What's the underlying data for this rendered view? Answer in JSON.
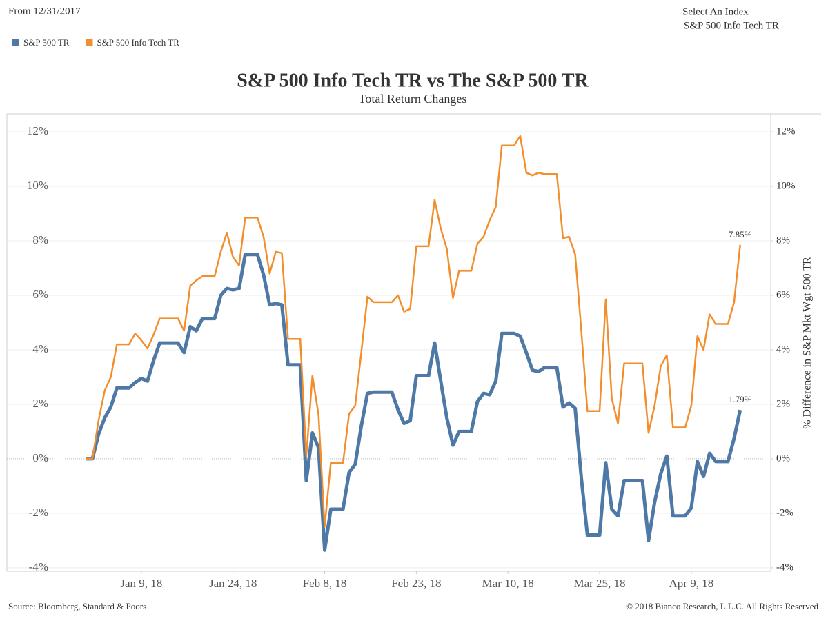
{
  "header": {
    "range_note": "From 12/31/2017",
    "selector_label": "Select An Index",
    "selector_value": "S&P 500 Info Tech TR"
  },
  "chart_data": {
    "type": "line",
    "title": "S&P 500 Info Tech TR vs The S&P 500 TR",
    "subtitle": "Total Return Changes",
    "y2_label": "% Difference in S&P Mkt Wgt 500 TR",
    "x": [
      "2017-12-31",
      "2018-01-01",
      "2018-01-02",
      "2018-01-03",
      "2018-01-04",
      "2018-01-05",
      "2018-01-06",
      "2018-01-07",
      "2018-01-08",
      "2018-01-09",
      "2018-01-10",
      "2018-01-11",
      "2018-01-12",
      "2018-01-13",
      "2018-01-14",
      "2018-01-15",
      "2018-01-16",
      "2018-01-17",
      "2018-01-18",
      "2018-01-19",
      "2018-01-20",
      "2018-01-21",
      "2018-01-22",
      "2018-01-23",
      "2018-01-24",
      "2018-01-25",
      "2018-01-26",
      "2018-01-27",
      "2018-01-28",
      "2018-01-29",
      "2018-01-30",
      "2018-01-31",
      "2018-02-01",
      "2018-02-02",
      "2018-02-03",
      "2018-02-04",
      "2018-02-05",
      "2018-02-06",
      "2018-02-07",
      "2018-02-08",
      "2018-02-09",
      "2018-02-10",
      "2018-02-11",
      "2018-02-12",
      "2018-02-13",
      "2018-02-14",
      "2018-02-15",
      "2018-02-16",
      "2018-02-17",
      "2018-02-18",
      "2018-02-19",
      "2018-02-20",
      "2018-02-21",
      "2018-02-22",
      "2018-02-23",
      "2018-02-24",
      "2018-02-25",
      "2018-02-26",
      "2018-02-27",
      "2018-02-28",
      "2018-03-01",
      "2018-03-02",
      "2018-03-03",
      "2018-03-04",
      "2018-03-05",
      "2018-03-06",
      "2018-03-07",
      "2018-03-08",
      "2018-03-09",
      "2018-03-10",
      "2018-03-11",
      "2018-03-12",
      "2018-03-13",
      "2018-03-14",
      "2018-03-15",
      "2018-03-16",
      "2018-03-17",
      "2018-03-18",
      "2018-03-19",
      "2018-03-20",
      "2018-03-21",
      "2018-03-22",
      "2018-03-23",
      "2018-03-24",
      "2018-03-25",
      "2018-03-26",
      "2018-03-27",
      "2018-03-28",
      "2018-03-29",
      "2018-03-30",
      "2018-03-31",
      "2018-04-01",
      "2018-04-02",
      "2018-04-03",
      "2018-04-04",
      "2018-04-05",
      "2018-04-06",
      "2018-04-07",
      "2018-04-08",
      "2018-04-09",
      "2018-04-10",
      "2018-04-11",
      "2018-04-12",
      "2018-04-13",
      "2018-04-14",
      "2018-04-15",
      "2018-04-16",
      "2018-04-17"
    ],
    "series": [
      {
        "name": "S&P 500 TR",
        "color": "#4e79a7",
        "width": 5,
        "end_label": "1.79%",
        "values": [
          0,
          0,
          0.9,
          1.5,
          1.9,
          2.6,
          2.6,
          2.6,
          2.8,
          2.95,
          2.85,
          3.6,
          4.25,
          4.25,
          4.25,
          4.25,
          3.9,
          4.85,
          4.7,
          5.15,
          5.15,
          5.15,
          6.0,
          6.25,
          6.2,
          6.25,
          7.5,
          7.5,
          7.5,
          6.75,
          5.65,
          5.7,
          5.65,
          3.45,
          3.45,
          3.45,
          -0.8,
          0.95,
          0.4,
          -3.35,
          -1.85,
          -1.85,
          -1.85,
          -0.5,
          -0.2,
          1.2,
          2.4,
          2.45,
          2.45,
          2.45,
          2.45,
          1.8,
          1.3,
          1.4,
          3.05,
          3.05,
          3.05,
          4.25,
          2.85,
          1.5,
          0.5,
          1.0,
          1.0,
          1.0,
          2.1,
          2.4,
          2.35,
          2.85,
          4.6,
          4.6,
          4.6,
          4.5,
          3.9,
          3.25,
          3.2,
          3.35,
          3.35,
          3.35,
          1.9,
          2.05,
          1.85,
          -0.7,
          -2.8,
          -2.8,
          -2.8,
          -0.15,
          -1.85,
          -2.1,
          -0.8,
          -0.8,
          -0.8,
          -0.8,
          -3.0,
          -1.6,
          -0.55,
          0.1,
          -2.1,
          -2.1,
          -2.1,
          -1.8,
          -0.1,
          -0.65,
          0.2,
          -0.1,
          -0.1,
          -0.1,
          0.75,
          1.79
        ]
      },
      {
        "name": "S&P 500 Info Tech TR",
        "color": "#f28e2b",
        "width": 2.5,
        "end_label": "7.85%",
        "values": [
          0,
          0,
          1.4,
          2.5,
          3.0,
          4.2,
          4.2,
          4.2,
          4.6,
          4.35,
          4.05,
          4.55,
          5.15,
          5.15,
          5.15,
          5.15,
          4.7,
          6.35,
          6.55,
          6.7,
          6.7,
          6.7,
          7.6,
          8.3,
          7.4,
          7.1,
          8.85,
          8.85,
          8.85,
          8.15,
          6.8,
          7.6,
          7.55,
          4.4,
          4.4,
          4.4,
          0.1,
          3.05,
          1.6,
          -2.5,
          -0.15,
          -0.15,
          -0.15,
          1.65,
          1.95,
          3.9,
          5.95,
          5.75,
          5.75,
          5.75,
          5.75,
          6.0,
          5.4,
          5.5,
          7.8,
          7.8,
          7.8,
          9.5,
          8.45,
          7.7,
          5.9,
          6.9,
          6.9,
          6.9,
          7.9,
          8.15,
          8.75,
          9.25,
          11.5,
          11.5,
          11.5,
          11.85,
          10.5,
          10.4,
          10.5,
          10.45,
          10.45,
          10.45,
          8.1,
          8.15,
          7.5,
          4.7,
          1.75,
          1.75,
          1.75,
          5.85,
          2.2,
          1.3,
          3.5,
          3.5,
          3.5,
          3.5,
          0.95,
          1.95,
          3.4,
          3.8,
          1.15,
          1.15,
          1.15,
          1.95,
          4.5,
          4.0,
          5.3,
          4.95,
          4.95,
          4.95,
          5.75,
          7.85
        ]
      }
    ],
    "xlim": [
      "2017-12-18",
      "2018-04-22"
    ],
    "xticks": [
      {
        "value": "2018-01-09",
        "label": "Jan 9, 18"
      },
      {
        "value": "2018-01-24",
        "label": "Jan 24, 18"
      },
      {
        "value": "2018-02-08",
        "label": "Feb 8, 18"
      },
      {
        "value": "2018-02-23",
        "label": "Feb 23, 18"
      },
      {
        "value": "2018-03-10",
        "label": "Mar 10, 18"
      },
      {
        "value": "2018-03-25",
        "label": "Mar 25, 18"
      },
      {
        "value": "2018-04-09",
        "label": "Apr 9, 18"
      }
    ],
    "ylim": [
      -4.13,
      12.66
    ],
    "yticks": [
      {
        "value": -4,
        "label": "-4%"
      },
      {
        "value": -2,
        "label": "-2%"
      },
      {
        "value": 0,
        "label": "0%"
      },
      {
        "value": 2,
        "label": "2%"
      },
      {
        "value": 4,
        "label": "4%"
      },
      {
        "value": 6,
        "label": "6%"
      },
      {
        "value": 8,
        "label": "8%"
      },
      {
        "value": 10,
        "label": "10%"
      },
      {
        "value": 12,
        "label": "12%"
      }
    ],
    "y2lim": [
      -4.13,
      12.66
    ],
    "y2ticks": [
      {
        "value": -4,
        "label": "-4%"
      },
      {
        "value": -2,
        "label": "-2%"
      },
      {
        "value": 0,
        "label": "0%"
      },
      {
        "value": 2,
        "label": "2%"
      },
      {
        "value": 4,
        "label": "4%"
      },
      {
        "value": 6,
        "label": "6%"
      },
      {
        "value": 8,
        "label": "8%"
      },
      {
        "value": 10,
        "label": "10%"
      },
      {
        "value": 12,
        "label": "12%"
      }
    ],
    "grid": true,
    "legend": "top-left"
  },
  "footer": {
    "source": "Source: Bloomberg, Standard & Poors",
    "copyright": "© 2018 Bianco Research, L.L.C. All Rights Reserved"
  }
}
